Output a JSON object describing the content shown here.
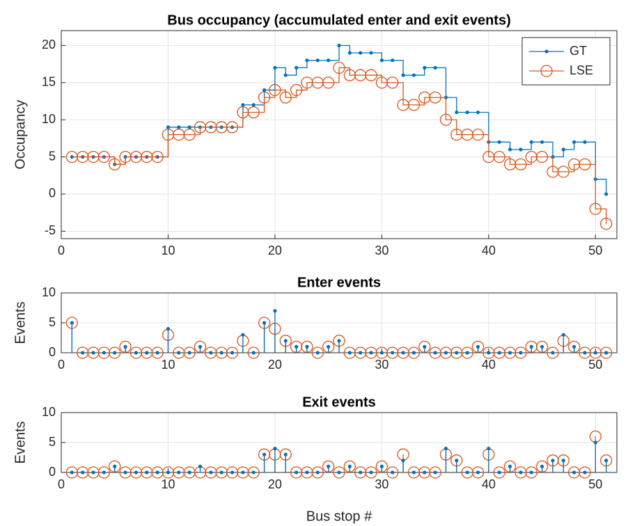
{
  "chart_data": [
    {
      "type": "step",
      "title": "Bus occupancy (accumulated enter and exit events)",
      "ylabel": "Occupancy",
      "x": [
        1,
        2,
        3,
        4,
        5,
        6,
        7,
        8,
        9,
        10,
        11,
        12,
        13,
        14,
        15,
        16,
        17,
        18,
        19,
        20,
        21,
        22,
        23,
        24,
        25,
        26,
        27,
        28,
        29,
        30,
        31,
        32,
        33,
        34,
        35,
        36,
        37,
        38,
        39,
        40,
        41,
        42,
        43,
        44,
        45,
        46,
        47,
        48,
        49,
        50,
        51
      ],
      "series": [
        {
          "name": "GT",
          "color": "#0072BD",
          "marker": "dot",
          "values": [
            5,
            5,
            5,
            5,
            4,
            5,
            5,
            5,
            5,
            9,
            9,
            9,
            9,
            9,
            9,
            9,
            12,
            12,
            14,
            17,
            16,
            17,
            18,
            18,
            18,
            20,
            19,
            19,
            19,
            18,
            18,
            16,
            16,
            17,
            17,
            13,
            11,
            11,
            11,
            7,
            7,
            6,
            6,
            7,
            7,
            5,
            6,
            7,
            7,
            2,
            0
          ]
        },
        {
          "name": "LSE",
          "color": "#D95319",
          "marker": "circle",
          "values": [
            5,
            5,
            5,
            5,
            4,
            5,
            5,
            5,
            5,
            8,
            8,
            8,
            9,
            9,
            9,
            9,
            11,
            11,
            13,
            14,
            13,
            14,
            15,
            15,
            15,
            17,
            16,
            16,
            16,
            15,
            15,
            12,
            12,
            13,
            13,
            10,
            8,
            8,
            8,
            5,
            5,
            4,
            4,
            5,
            5,
            3,
            3,
            4,
            4,
            -2,
            -4
          ]
        }
      ],
      "xlim": [
        0,
        52
      ],
      "xticks": [
        0,
        10,
        20,
        30,
        40,
        50
      ],
      "ylim": [
        -6,
        22
      ],
      "yticks": [
        -5,
        0,
        5,
        10,
        15,
        20
      ],
      "grid": true,
      "legend": "upper right"
    },
    {
      "type": "stem",
      "title": "Enter events",
      "ylabel": "Events",
      "x": [
        1,
        2,
        3,
        4,
        5,
        6,
        7,
        8,
        9,
        10,
        11,
        12,
        13,
        14,
        15,
        16,
        17,
        18,
        19,
        20,
        21,
        22,
        23,
        24,
        25,
        26,
        27,
        28,
        29,
        30,
        31,
        32,
        33,
        34,
        35,
        36,
        37,
        38,
        39,
        40,
        41,
        42,
        43,
        44,
        45,
        46,
        47,
        48,
        49,
        50,
        51
      ],
      "series": [
        {
          "name": "GT",
          "color": "#0072BD",
          "marker": "dot",
          "values": [
            5,
            0,
            0,
            0,
            0,
            1,
            0,
            0,
            0,
            4,
            0,
            0,
            1,
            0,
            0,
            0,
            3,
            0,
            5,
            7,
            2,
            1,
            1,
            0,
            1,
            2,
            0,
            0,
            0,
            0,
            0,
            0,
            0,
            1,
            0,
            0,
            0,
            0,
            1,
            0,
            0,
            0,
            0,
            1,
            1,
            0,
            3,
            1,
            0,
            0,
            0
          ]
        },
        {
          "name": "LSE",
          "color": "#D95319",
          "marker": "circle",
          "values": [
            5,
            0,
            0,
            0,
            0,
            1,
            0,
            0,
            0,
            3,
            0,
            0,
            1,
            0,
            0,
            0,
            2,
            0,
            5,
            4,
            2,
            1,
            1,
            0,
            1,
            2,
            0,
            0,
            0,
            0,
            0,
            0,
            0,
            1,
            0,
            0,
            0,
            0,
            1,
            0,
            0,
            0,
            0,
            1,
            1,
            0,
            2,
            1,
            0,
            0,
            0
          ]
        }
      ],
      "xlim": [
        0,
        52
      ],
      "xticks": [
        0,
        10,
        20,
        30,
        40,
        50
      ],
      "ylim": [
        0,
        10
      ],
      "yticks": [
        0,
        5,
        10
      ],
      "grid": true
    },
    {
      "type": "stem",
      "title": "Exit events",
      "ylabel": "Events",
      "xlabel": "Bus stop #",
      "x": [
        1,
        2,
        3,
        4,
        5,
        6,
        7,
        8,
        9,
        10,
        11,
        12,
        13,
        14,
        15,
        16,
        17,
        18,
        19,
        20,
        21,
        22,
        23,
        24,
        25,
        26,
        27,
        28,
        29,
        30,
        31,
        32,
        33,
        34,
        35,
        36,
        37,
        38,
        39,
        40,
        41,
        42,
        43,
        44,
        45,
        46,
        47,
        48,
        49,
        50,
        51
      ],
      "series": [
        {
          "name": "GT",
          "color": "#0072BD",
          "marker": "dot",
          "values": [
            0,
            0,
            0,
            0,
            1,
            0,
            0,
            0,
            0,
            0,
            0,
            0,
            1,
            0,
            0,
            0,
            0,
            0,
            3,
            4,
            3,
            0,
            0,
            0,
            1,
            0,
            1,
            0,
            0,
            1,
            0,
            2,
            0,
            0,
            0,
            4,
            2,
            0,
            0,
            4,
            0,
            1,
            0,
            0,
            1,
            2,
            2,
            0,
            0,
            5,
            2
          ]
        },
        {
          "name": "LSE",
          "color": "#D95319",
          "marker": "circle",
          "values": [
            0,
            0,
            0,
            0,
            1,
            0,
            0,
            0,
            0,
            0,
            0,
            0,
            0,
            0,
            0,
            0,
            0,
            0,
            3,
            3,
            3,
            0,
            0,
            0,
            1,
            0,
            1,
            0,
            0,
            1,
            0,
            3,
            0,
            0,
            0,
            3,
            2,
            0,
            0,
            3,
            0,
            1,
            0,
            0,
            1,
            2,
            2,
            0,
            0,
            6,
            2
          ]
        }
      ],
      "xlim": [
        0,
        52
      ],
      "xticks": [
        0,
        10,
        20,
        30,
        40,
        50
      ],
      "ylim": [
        0,
        10
      ],
      "yticks": [
        0,
        5,
        10
      ],
      "grid": true
    }
  ]
}
